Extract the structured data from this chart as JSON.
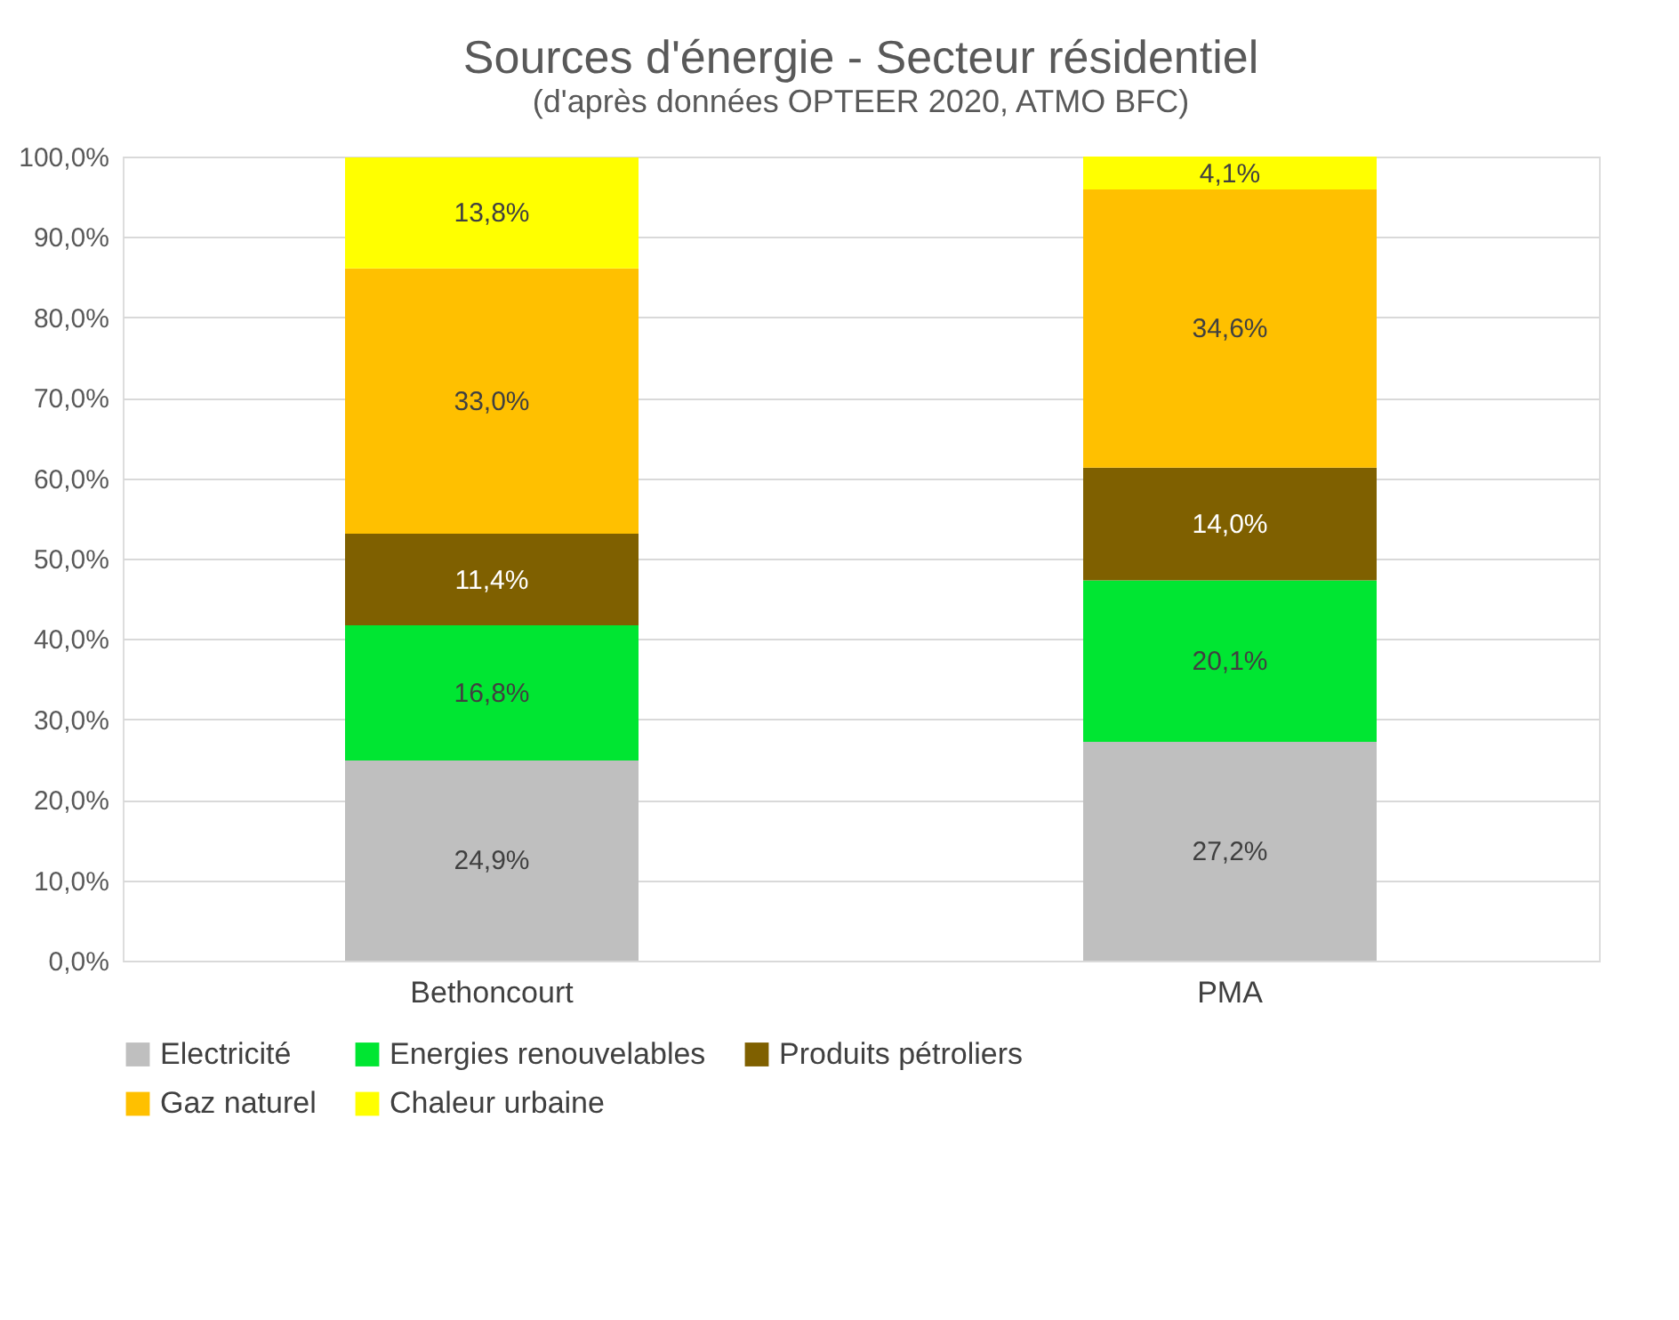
{
  "chart_data": {
    "type": "bar",
    "stacked": true,
    "title": "Sources d'énergie - Secteur résidentiel",
    "subtitle": "(d'après données OPTEER 2020, ATMO BFC)",
    "categories": [
      "Bethoncourt",
      "PMA"
    ],
    "series": [
      {
        "name": "Electricité",
        "color": "#bfbfbf",
        "values": [
          24.9,
          27.2
        ],
        "value_labels": [
          "24,9%",
          "27,2%"
        ]
      },
      {
        "name": "Energies renouvelables",
        "color": "#00e632",
        "values": [
          16.8,
          20.1
        ],
        "value_labels": [
          "16,8%",
          "20,1%"
        ]
      },
      {
        "name": "Produits pétroliers",
        "color": "#7f6000",
        "values": [
          11.4,
          14.0
        ],
        "value_labels": [
          "11,4%",
          "14,0%"
        ]
      },
      {
        "name": "Gaz naturel",
        "color": "#ffc000",
        "values": [
          33.0,
          34.6
        ],
        "value_labels": [
          "33,0%",
          "34,6%"
        ]
      },
      {
        "name": "Chaleur urbaine",
        "color": "#ffff00",
        "values": [
          13.8,
          4.1
        ],
        "value_labels": [
          "13,8%",
          "4,1%"
        ]
      }
    ],
    "ylim": [
      0,
      100
    ],
    "yticks": [
      {
        "value": 0,
        "label": "0,0%"
      },
      {
        "value": 10,
        "label": "10,0%"
      },
      {
        "value": 20,
        "label": "20,0%"
      },
      {
        "value": 30,
        "label": "30,0%"
      },
      {
        "value": 40,
        "label": "40,0%"
      },
      {
        "value": 50,
        "label": "50,0%"
      },
      {
        "value": 60,
        "label": "60,0%"
      },
      {
        "value": 70,
        "label": "70,0%"
      },
      {
        "value": 80,
        "label": "80,0%"
      },
      {
        "value": 90,
        "label": "90,0%"
      },
      {
        "value": 100,
        "label": "100,0%"
      }
    ],
    "grid": "y",
    "legend": "bottom"
  }
}
